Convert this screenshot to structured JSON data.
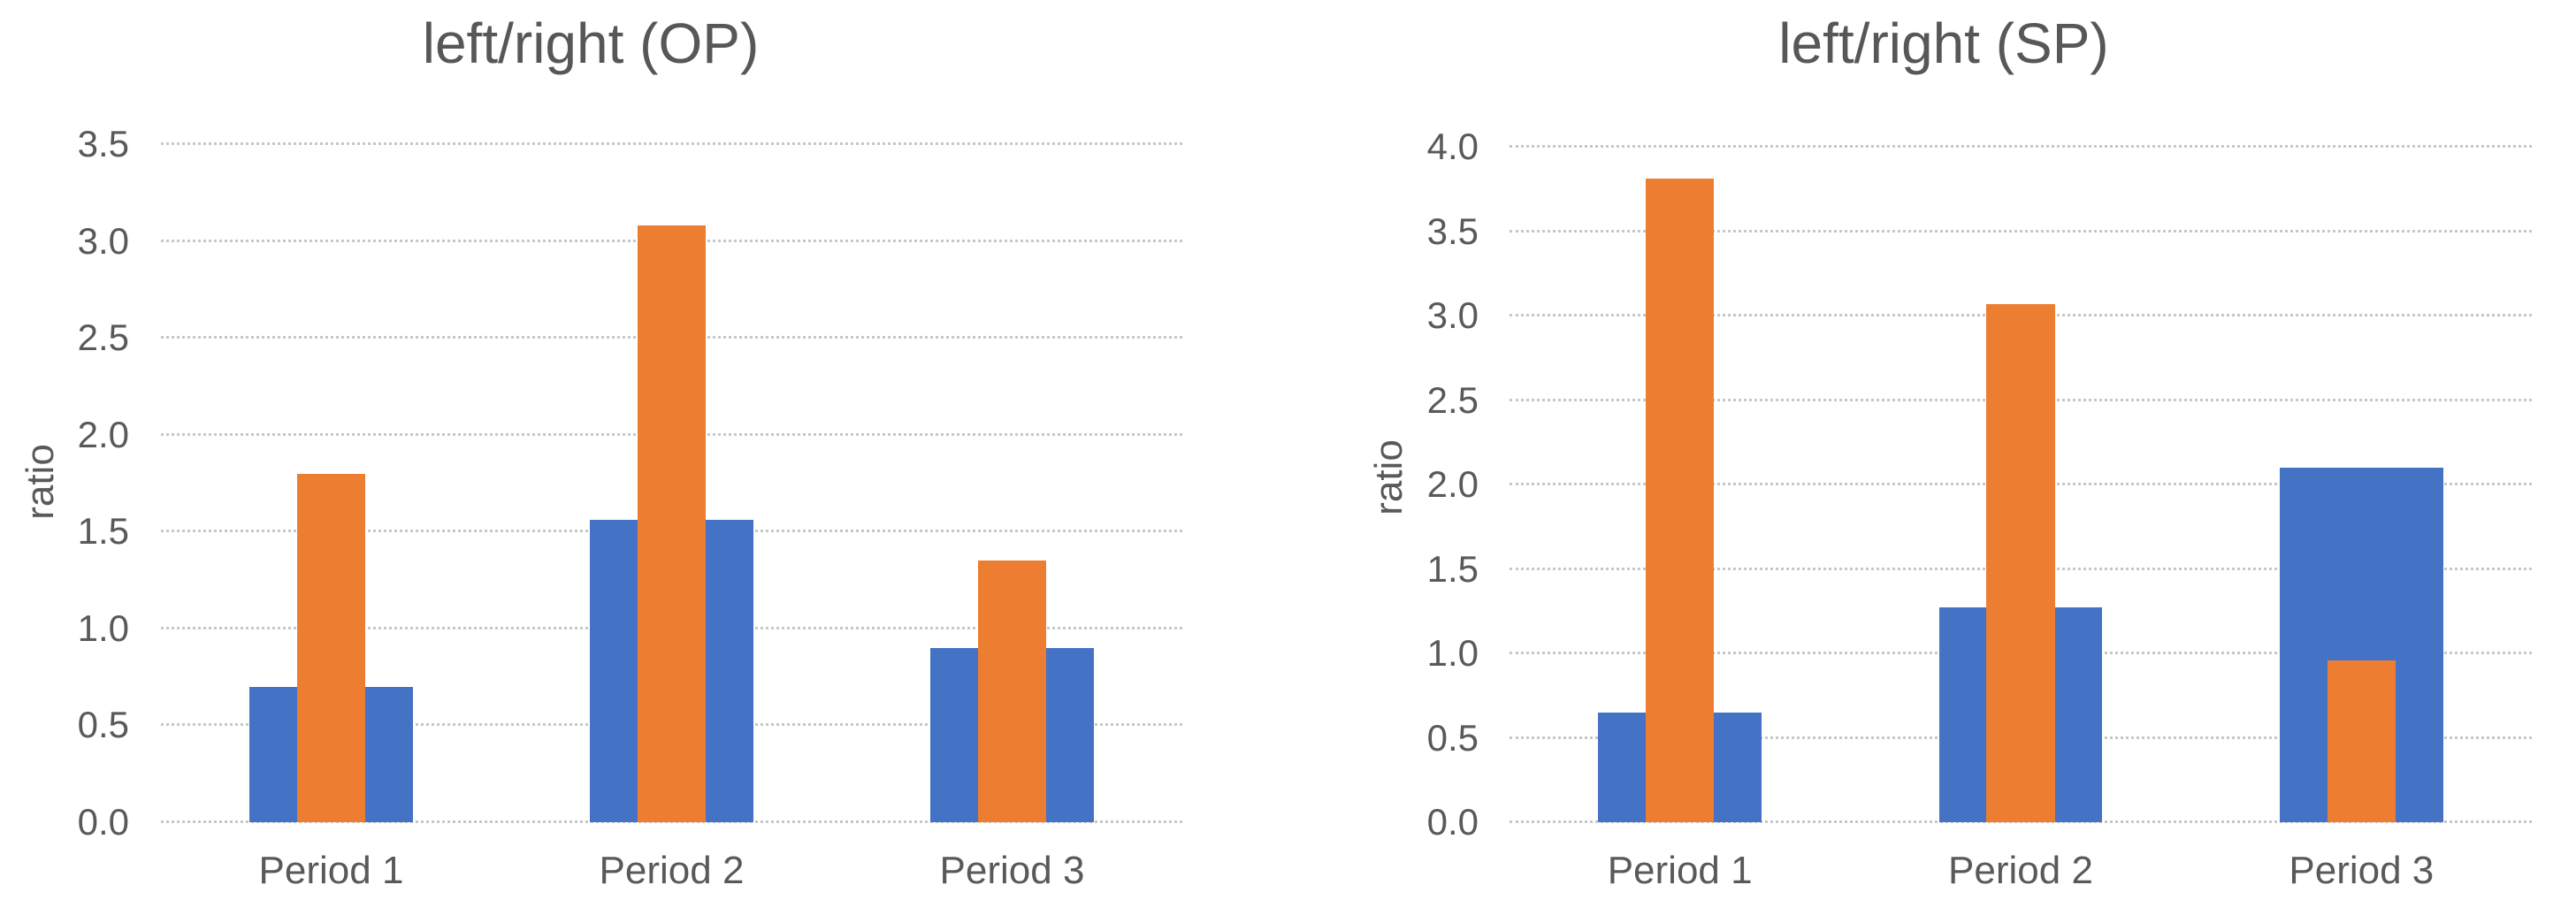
{
  "chart_data": [
    {
      "type": "bar",
      "title": "left/right (OP)",
      "xlabel": "",
      "ylabel": "ratio",
      "categories": [
        "Period 1",
        "Period 2",
        "Period 3"
      ],
      "series": [
        {
          "name": "blue-wide",
          "color": "#4472C4",
          "bar_width_pct": 48,
          "values": [
            0.7,
            1.56,
            0.9
          ]
        },
        {
          "name": "orange-narrow",
          "color": "#ED7D31",
          "bar_width_pct": 20,
          "values": [
            1.8,
            3.08,
            1.35
          ]
        }
      ],
      "ylim": [
        0,
        3.5
      ],
      "ytick_step": 0.5,
      "ytick_labels": [
        "0.0",
        "0.5",
        "1.0",
        "1.5",
        "2.0",
        "2.5",
        "3.0",
        "3.5"
      ],
      "grid": true,
      "gridline_style": "dotted-light-gray",
      "legend": "none",
      "bar_layout": "overlapped-centered"
    },
    {
      "type": "bar",
      "title": "left/right (SP)",
      "xlabel": "",
      "ylabel": "ratio",
      "categories": [
        "Period 1",
        "Period 2",
        "Period 3"
      ],
      "series": [
        {
          "name": "blue-wide",
          "color": "#4472C4",
          "bar_width_pct": 48,
          "values": [
            0.65,
            1.27,
            2.1
          ]
        },
        {
          "name": "orange-narrow",
          "color": "#ED7D31",
          "bar_width_pct": 20,
          "values": [
            3.81,
            3.07,
            0.96
          ]
        }
      ],
      "ylim": [
        0,
        4.0
      ],
      "ytick_step": 0.5,
      "ytick_labels": [
        "0.0",
        "0.5",
        "1.0",
        "1.5",
        "2.0",
        "2.5",
        "3.0",
        "3.5",
        "4.0"
      ],
      "grid": true,
      "gridline_style": "dotted-light-gray",
      "legend": "none",
      "bar_layout": "overlapped-centered"
    }
  ]
}
